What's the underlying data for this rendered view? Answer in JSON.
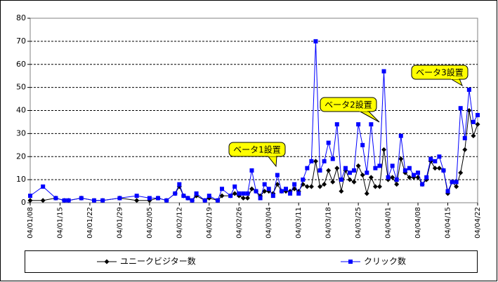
{
  "chart_data": {
    "type": "line",
    "x": [
      "04/01/08",
      "04/01/11",
      "04/01/14",
      "04/01/16",
      "04/01/17",
      "04/01/20",
      "04/01/23",
      "04/01/25",
      "04/01/29",
      "04/02/02",
      "04/02/05",
      "04/02/07",
      "04/02/09",
      "04/02/11",
      "04/02/12",
      "04/02/13",
      "04/02/14",
      "04/02/15",
      "04/02/16",
      "04/02/18",
      "04/02/19",
      "04/02/21",
      "04/02/22",
      "04/02/24",
      "04/02/25",
      "04/02/26",
      "04/02/27",
      "04/02/28",
      "04/02/29",
      "04/03/01",
      "04/03/02",
      "04/03/03",
      "04/03/04",
      "04/03/05",
      "04/03/06",
      "04/03/07",
      "04/03/08",
      "04/03/09",
      "04/03/10",
      "04/03/11",
      "04/03/12",
      "04/03/13",
      "04/03/14",
      "04/03/15",
      "04/03/16",
      "04/03/17",
      "04/03/18",
      "04/03/19",
      "04/03/20",
      "04/03/21",
      "04/03/22",
      "04/03/23",
      "04/03/24",
      "04/03/25",
      "04/03/26",
      "04/03/27",
      "04/03/28",
      "04/03/29",
      "04/03/30",
      "04/03/31",
      "04/04/01",
      "04/04/02",
      "04/04/03",
      "04/04/04",
      "04/04/05",
      "04/04/06",
      "04/04/07",
      "04/04/08",
      "04/04/09",
      "04/04/10",
      "04/04/11",
      "04/04/12",
      "04/04/13",
      "04/04/14",
      "04/04/15",
      "04/04/16",
      "04/04/17",
      "04/04/18",
      "04/04/19",
      "04/04/20",
      "04/04/21",
      "04/04/22"
    ],
    "series": [
      {
        "name": "ユニークビジター数",
        "color": "#000000",
        "marker": "diamond",
        "values": [
          1,
          1,
          2,
          1,
          1,
          2,
          1,
          1,
          2,
          1,
          1,
          2,
          1,
          4,
          7,
          3,
          2,
          1,
          3,
          1,
          2,
          1,
          3,
          3,
          4,
          3,
          2,
          2,
          6,
          5,
          3,
          5,
          5,
          4,
          8,
          5,
          5,
          5,
          6,
          5,
          8,
          7,
          7,
          18,
          7,
          8,
          14,
          9,
          15,
          5,
          14,
          10,
          9,
          16,
          12,
          4,
          11,
          7,
          7,
          23,
          10,
          11,
          8,
          19,
          13,
          11,
          11,
          11,
          8,
          10,
          18,
          15,
          15,
          14,
          4,
          9,
          7,
          13,
          23,
          40,
          29,
          34
        ]
      },
      {
        "name": "クリック数",
        "color": "#0000ff",
        "marker": "square",
        "values": [
          3,
          7,
          2,
          1,
          1,
          2,
          1,
          1,
          2,
          3,
          2,
          2,
          1,
          4,
          8,
          3,
          2,
          1,
          4,
          1,
          3,
          1,
          6,
          3,
          7,
          4,
          4,
          4,
          14,
          5,
          2,
          8,
          6,
          3,
          12,
          5,
          6,
          4,
          8,
          4,
          10,
          15,
          18,
          70,
          14,
          18,
          26,
          19,
          34,
          10,
          15,
          13,
          14,
          34,
          25,
          13,
          34,
          15,
          16,
          57,
          11,
          16,
          10,
          29,
          14,
          15,
          12,
          13,
          8,
          11,
          19,
          18,
          20,
          14,
          5,
          9,
          9,
          41,
          28,
          49,
          35,
          38
        ]
      }
    ],
    "xlim": [
      "04/01/08",
      "04/04/22"
    ],
    "xticks": [
      "04/01/08",
      "04/01/15",
      "04/01/22",
      "04/01/29",
      "04/02/05",
      "04/02/12",
      "04/02/19",
      "04/02/26",
      "04/03/04",
      "04/03/11",
      "04/03/18",
      "04/03/25",
      "04/04/01",
      "04/04/08",
      "04/04/15",
      "04/04/22"
    ],
    "ylim": [
      0,
      80
    ],
    "yticks": [
      0,
      10,
      20,
      30,
      40,
      50,
      60,
      70,
      80
    ],
    "grid": true,
    "annotations": [
      "ベータ1設置",
      "ベータ2設置",
      "ベータ3設置"
    ],
    "legend": "bottom"
  }
}
